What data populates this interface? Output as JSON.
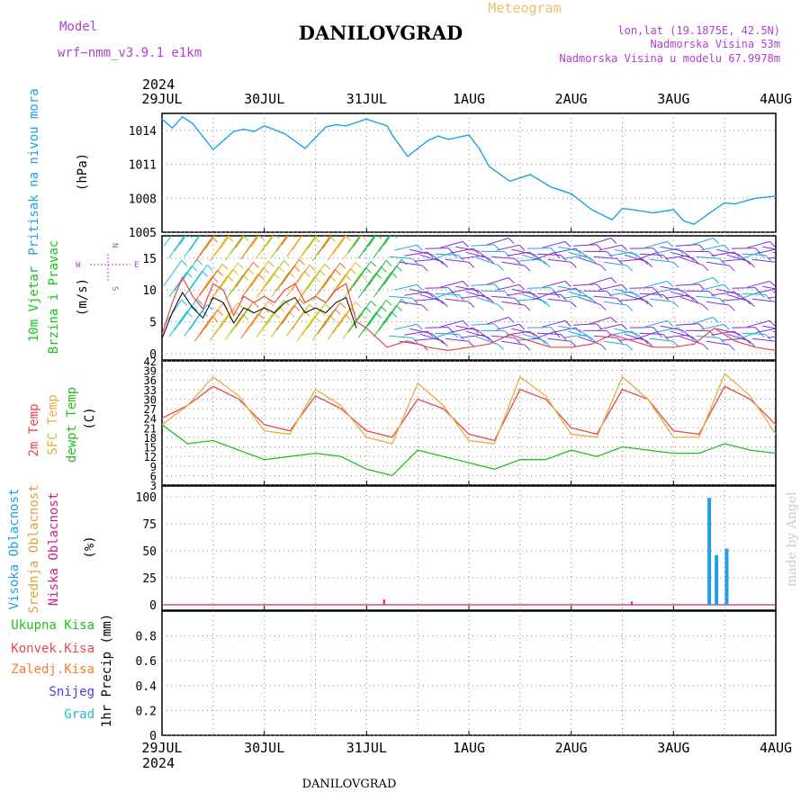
{
  "header": {
    "model_label": "Model",
    "model_value": "wrf−nmm_v3.9.1  e1km",
    "title": "DANILOVGRAD",
    "subtitle": "Meteogram",
    "coords": "lon,lat (19.1875E, 42.5N)",
    "elevation": "Nadmorska Visina 53m",
    "model_elevation": "Nadmorska Visina u modelu 67.9978m",
    "year_top": "2024",
    "year_bottom": "2024",
    "footer": "DANILOVGRAD",
    "credit": "made by Angel"
  },
  "colors": {
    "pressure": "#1ea2e6",
    "wind_label": "#18c418",
    "t2m": "#e84848",
    "tsfc": "#e0b040",
    "dewpt": "#20c020",
    "cloud_high": "#20a0e0",
    "cloud_mid": "#e0a040",
    "cloud_low": "#d02080",
    "rain_total": "#20c020",
    "rain_conv": "#e84848",
    "rain_strat": "#f08030",
    "snow": "#4040e0",
    "hail": "#20c0c0",
    "purple_text": "#b040d0",
    "header_orange": "#e8c070"
  },
  "chart_data": [
    {
      "id": "pressure",
      "type": "line",
      "x_labels": [
        "29JUL",
        "30JUL",
        "31JUL",
        "1AUG",
        "2AUG",
        "3AUG",
        "4AUG"
      ],
      "ylabel": [
        "Pritisak na nivou mora",
        "(hPa)"
      ],
      "yticks": [
        1005,
        1008,
        1011,
        1014
      ],
      "ylim": [
        1005,
        1015.5
      ],
      "grid": true,
      "x": [
        0,
        0.1,
        0.2,
        0.3,
        0.5,
        0.7,
        0.8,
        0.9,
        1.0,
        1.2,
        1.4,
        1.6,
        1.7,
        1.8,
        2.0,
        2.2,
        2.25,
        2.4,
        2.6,
        2.7,
        2.8,
        3.0,
        3.1,
        3.2,
        3.4,
        3.6,
        3.8,
        4.0,
        4.2,
        4.4,
        4.5,
        4.6,
        4.8,
        5.0,
        5.1,
        5.2,
        5.4,
        5.5,
        5.6,
        5.8,
        6.0
      ],
      "values": [
        1015.0,
        1014.2,
        1015.2,
        1014.6,
        1012.3,
        1013.9,
        1014.1,
        1013.9,
        1014.4,
        1013.7,
        1012.4,
        1014.3,
        1014.5,
        1014.4,
        1015.0,
        1014.4,
        1013.6,
        1011.7,
        1013.1,
        1013.5,
        1013.2,
        1013.6,
        1012.4,
        1010.8,
        1009.5,
        1010.1,
        1009.0,
        1008.4,
        1007.0,
        1006.1,
        1007.1,
        1007.0,
        1006.7,
        1007.0,
        1006.0,
        1005.7,
        1007.0,
        1007.6,
        1007.5,
        1008.0,
        1008.2
      ]
    },
    {
      "id": "wind",
      "type": "line",
      "ylabel": [
        "10m Vjetar",
        "Brzina i Pravac",
        "(m/s)"
      ],
      "compass": [
        "N",
        "W",
        "E",
        "S"
      ],
      "yticks": [
        0,
        5,
        10,
        15
      ],
      "ylim": [
        -1,
        18.5
      ],
      "grid": true,
      "x": [
        0,
        0.1,
        0.2,
        0.3,
        0.4,
        0.5,
        0.6,
        0.7,
        0.8,
        0.9,
        1.0,
        1.1,
        1.2,
        1.3,
        1.4,
        1.5,
        1.6,
        1.7,
        1.8,
        1.9,
        2.0,
        2.2,
        2.4,
        2.6,
        2.8,
        3.0,
        3.2,
        3.4,
        3.6,
        3.8,
        4.0,
        4.2,
        4.4,
        4.6,
        4.8,
        5.0,
        5.2,
        5.4,
        5.6,
        5.8,
        6.0
      ],
      "values": [
        3,
        8,
        12,
        9,
        7,
        11,
        10,
        6,
        9,
        8,
        9,
        8,
        10,
        11,
        8,
        9,
        8,
        10,
        11,
        5,
        4,
        1,
        2,
        1,
        0.5,
        1,
        1.5,
        3,
        2,
        1,
        1,
        1.5,
        3,
        2,
        1,
        1,
        1.5,
        4,
        2,
        1,
        0.5
      ]
    },
    {
      "id": "temperature",
      "type": "line",
      "ylabel": [
        "2m Temp",
        "SFC Temp",
        "dewpt Temp",
        "(C)"
      ],
      "yticks": [
        3,
        6,
        9,
        12,
        15,
        18,
        21,
        24,
        27,
        30,
        33,
        36,
        39,
        42
      ],
      "ylim": [
        3,
        42
      ],
      "grid": true,
      "series": [
        {
          "name": "2m Temp",
          "x": [
            0,
            0.25,
            0.5,
            0.75,
            1.0,
            1.25,
            1.5,
            1.75,
            2.0,
            2.25,
            2.5,
            2.75,
            3.0,
            3.25,
            3.5,
            3.75,
            4.0,
            4.25,
            4.5,
            4.75,
            5.0,
            5.25,
            5.5,
            5.75,
            6.0
          ],
          "values": [
            24,
            28,
            34,
            30,
            22,
            20,
            31,
            27,
            20,
            18,
            30,
            27,
            19,
            17,
            33,
            30,
            21,
            19,
            33,
            30,
            20,
            19,
            34,
            30,
            22
          ]
        },
        {
          "name": "SFC Temp",
          "x": [
            0,
            0.25,
            0.5,
            0.75,
            1.0,
            1.25,
            1.5,
            1.75,
            2.0,
            2.25,
            2.5,
            2.75,
            3.0,
            3.25,
            3.5,
            3.75,
            4.0,
            4.25,
            4.5,
            4.75,
            5.0,
            5.25,
            5.5,
            5.75,
            6.0
          ],
          "values": [
            22,
            28,
            37,
            31,
            20,
            19,
            33,
            28,
            18,
            16,
            35,
            28,
            17,
            16,
            37,
            31,
            19,
            18,
            37,
            30,
            18,
            18,
            38,
            31,
            19
          ]
        },
        {
          "name": "dewpt Temp",
          "x": [
            0,
            0.25,
            0.5,
            0.75,
            1.0,
            1.25,
            1.5,
            1.75,
            2.0,
            2.25,
            2.5,
            2.75,
            3.0,
            3.25,
            3.5,
            3.75,
            4.0,
            4.25,
            4.5,
            4.75,
            5.0,
            5.25,
            5.5,
            5.75,
            6.0
          ],
          "values": [
            22,
            16,
            17,
            14,
            11,
            12,
            13,
            12,
            8,
            6,
            14,
            12,
            10,
            8,
            11,
            11,
            14,
            12,
            15,
            14,
            13,
            13,
            16,
            14,
            13
          ]
        }
      ]
    },
    {
      "id": "clouds",
      "type": "bar",
      "ylabel": [
        "Visoka Oblacnost",
        "Srednja Oblacnost",
        "Niska Oblacnost",
        "(%)"
      ],
      "yticks": [
        0,
        25,
        50,
        75,
        100
      ],
      "ylim": [
        -5,
        110
      ],
      "grid": true,
      "series": [
        {
          "name": "Visoka Oblacnost",
          "x": [
            5.35,
            5.42,
            5.52
          ],
          "values": [
            99,
            46,
            52
          ]
        },
        {
          "name": "Niska Oblacnost",
          "x": [
            2.18,
            4.6
          ],
          "values": [
            5,
            3
          ]
        }
      ]
    },
    {
      "id": "precip",
      "type": "bar",
      "ylabel": [
        "1hr Precip (mm)"
      ],
      "legend": [
        "Ukupna Kisa",
        "Konvek.Kisa",
        "Zaledj.Kisa",
        "Snijeg",
        "Grad"
      ],
      "yticks": [
        0,
        0.2,
        0.4,
        0.6,
        0.8
      ],
      "ylim": [
        0,
        1.0
      ],
      "grid": true,
      "values": []
    }
  ]
}
